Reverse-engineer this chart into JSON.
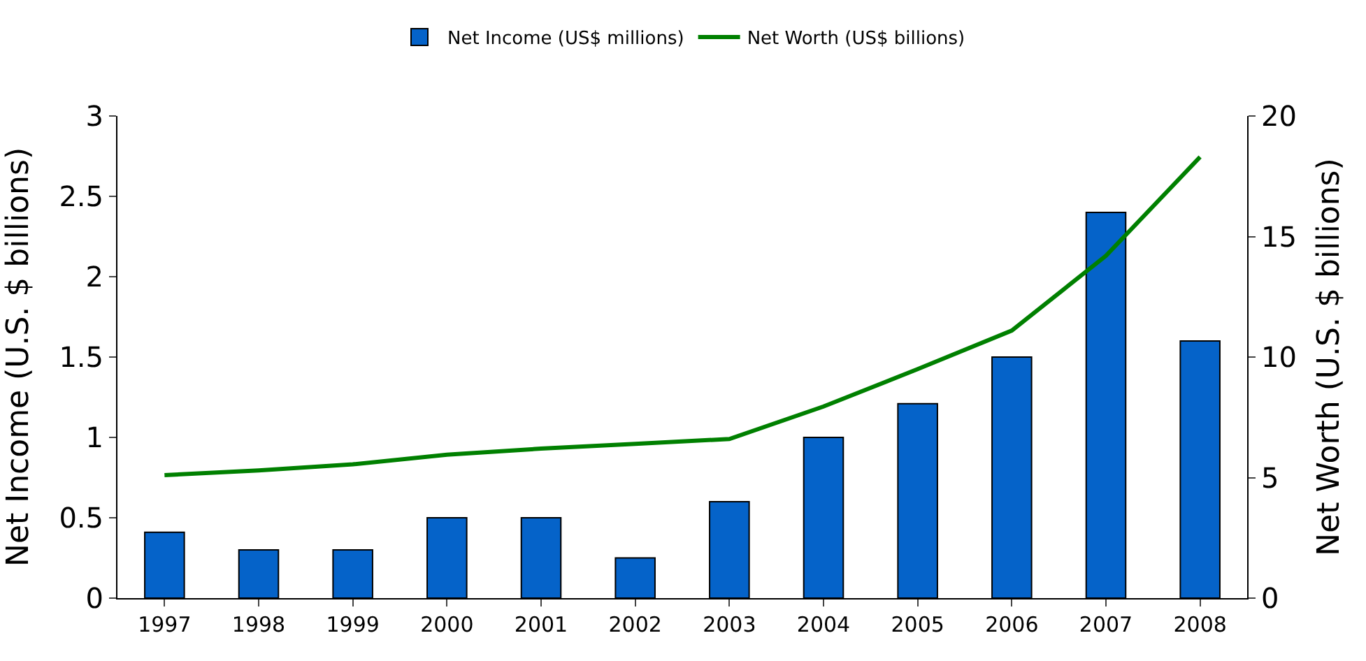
{
  "chart_data": {
    "type": "bar",
    "categories": [
      "1997",
      "1998",
      "1999",
      "2000",
      "2001",
      "2002",
      "2003",
      "2004",
      "2005",
      "2006",
      "2007",
      "2008"
    ],
    "series": [
      {
        "name": "Net Income (US$ millions)",
        "color": "#0563c9",
        "values": [
          0.41,
          0.3,
          0.3,
          0.5,
          0.5,
          0.25,
          0.6,
          1.0,
          1.21,
          1.5,
          2.4,
          1.6
        ]
      },
      {
        "name": "Net Worth (US$ billions)",
        "type": "line",
        "axis": "y2",
        "color": "#008000",
        "values": [
          5.1,
          5.3,
          5.55,
          5.95,
          6.2,
          6.4,
          6.6,
          7.95,
          9.5,
          11.1,
          14.2,
          18.3
        ]
      }
    ],
    "ylabel": "Net Income (U.S. $ billions)",
    "y2label": "Net Worth (U.S. $ billions)",
    "ylim": [
      0,
      3
    ],
    "yticks": [
      0,
      0.5,
      1,
      1.5,
      2,
      2.5,
      3
    ],
    "y2lim": [
      0,
      20
    ],
    "y2ticks": [
      0,
      5,
      10,
      15,
      20
    ],
    "legend": "top",
    "grid": false,
    "marker": "none",
    "line_style": "solid"
  }
}
